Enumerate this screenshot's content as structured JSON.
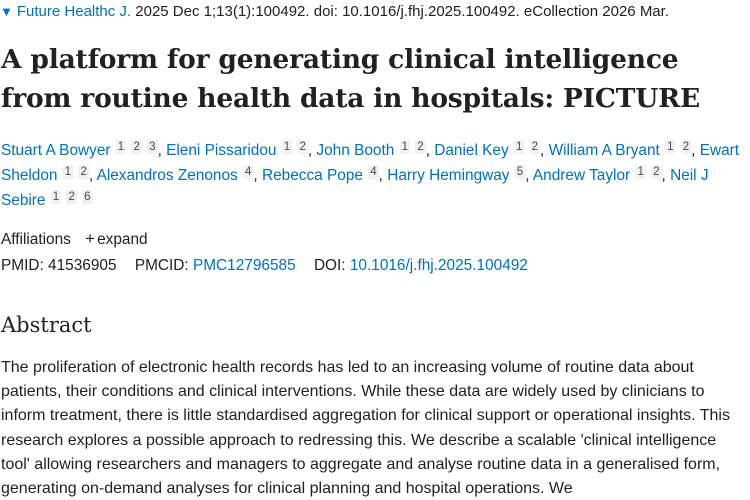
{
  "citation": {
    "journal": "Future Healthc J.",
    "details": "2025 Dec 1;13(1):100492. doi: 10.1016/j.fhj.2025.100492. eCollection 2026 Mar.",
    "chevron_icon": "chevron-down-icon"
  },
  "title": "A platform for generating clinical intelligence from routine health data in hospitals: PICTURE",
  "authors": [
    {
      "name": "Stuart A Bowyer",
      "affs": [
        "1",
        "2",
        "3"
      ]
    },
    {
      "name": "Eleni Pissaridou",
      "affs": [
        "1",
        "2"
      ]
    },
    {
      "name": "John Booth",
      "affs": [
        "1",
        "2"
      ]
    },
    {
      "name": "Daniel Key",
      "affs": [
        "1",
        "2"
      ]
    },
    {
      "name": "William A Bryant",
      "affs": [
        "1",
        "2"
      ]
    },
    {
      "name": "Ewart Sheldon",
      "affs": [
        "1",
        "2"
      ]
    },
    {
      "name": "Alexandros Zenonos",
      "affs": [
        "4"
      ]
    },
    {
      "name": "Rebecca Pope",
      "affs": [
        "4"
      ]
    },
    {
      "name": "Harry Hemingway",
      "affs": [
        "5"
      ]
    },
    {
      "name": "Andrew Taylor",
      "affs": [
        "1",
        "2"
      ]
    },
    {
      "name": "Neil J Sebire",
      "affs": [
        "1",
        "2",
        "6"
      ]
    }
  ],
  "affiliations": {
    "label": "Affiliations",
    "expand_icon": "+",
    "expand_label": "expand"
  },
  "identifiers": {
    "pmid_label": "PMID:",
    "pmid": "41536905",
    "pmcid_label": "PMCID:",
    "pmcid": "PMC12796585",
    "doi_label": "DOI:",
    "doi": "10.1016/j.fhj.2025.100492"
  },
  "abstract": {
    "heading": "Abstract",
    "text": "The proliferation of electronic health records has led to an increasing volume of routine data about patients, their conditions and clinical interventions. While these data are widely used by clinicians to inform treatment, there is little standardised aggregation for clinical support or operational insights. This research explores a possible approach to redressing this. We describe a scalable 'clinical intelligence tool' allowing researchers and managers to aggregate and analyse routine data in a generalised form, generating on-demand analyses for clinical planning and hospital operations. We"
  },
  "colors": {
    "link": "#0071bc",
    "text": "#212121",
    "aff_badge_bg": "#f1f1f1"
  }
}
